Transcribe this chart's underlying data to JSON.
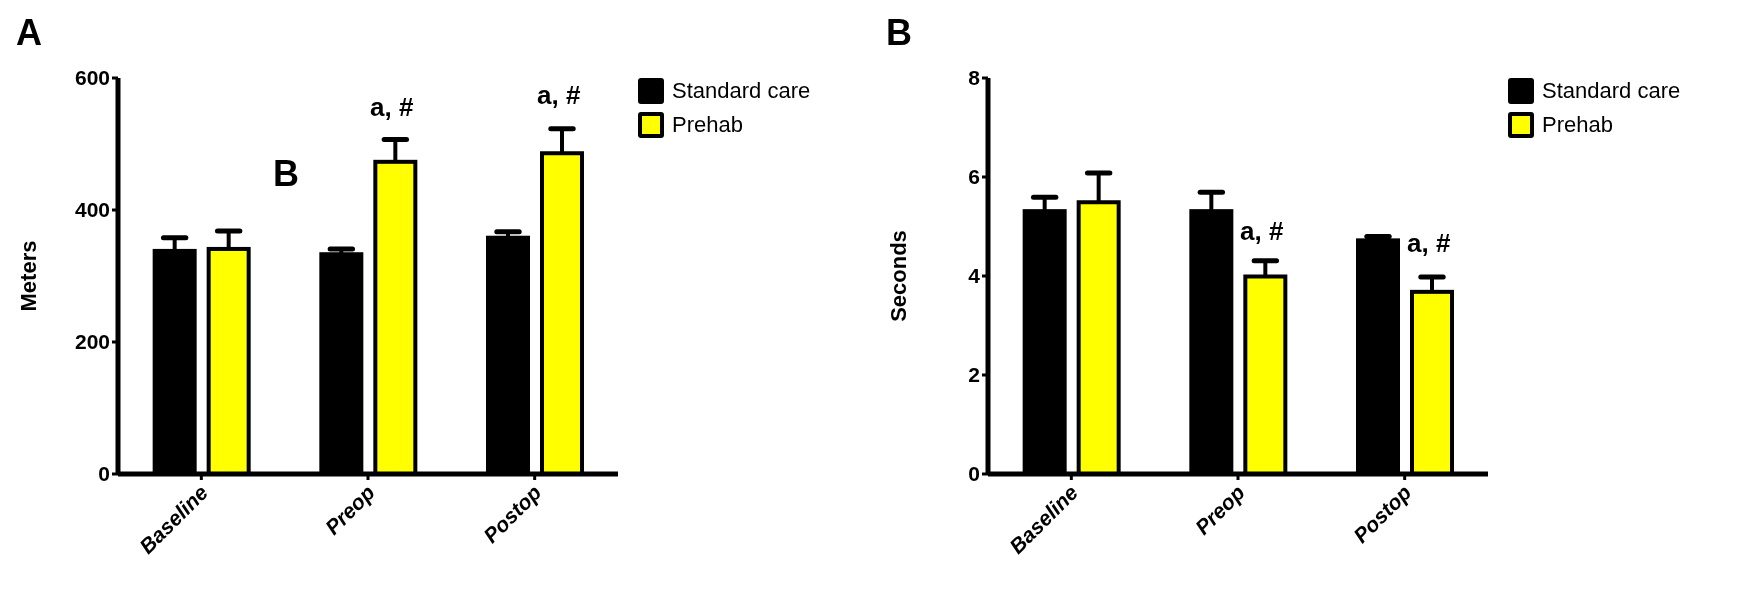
{
  "chart_data": [
    {
      "type": "bar",
      "title": "A",
      "ylabel": "Meters",
      "categories": [
        "Baseline",
        "Preop",
        "Postop"
      ],
      "series": [
        {
          "name": "Standard care",
          "color": "#000000",
          "values": [
            338,
            333,
            358
          ],
          "errors": [
            20,
            8,
            9
          ]
        },
        {
          "name": "Prehab",
          "color": "#ffff00",
          "values": [
            341,
            473,
            486
          ],
          "errors": [
            27,
            34,
            37
          ]
        }
      ],
      "ylim": [
        0,
        600
      ],
      "yticks": [
        0,
        200,
        400,
        600
      ],
      "legend": "top right",
      "annotations": [
        "B",
        "a, #",
        "a, #"
      ]
    },
    {
      "type": "bar",
      "title": "B",
      "ylabel": "Seconds",
      "categories": [
        "Baseline",
        "Preop",
        "Postop"
      ],
      "series": [
        {
          "name": "Standard care",
          "color": "#000000",
          "values": [
            5.31,
            5.31,
            4.72
          ],
          "errors": [
            0.28,
            0.38,
            0.08
          ]
        },
        {
          "name": "Prehab",
          "color": "#ffff00",
          "values": [
            5.49,
            3.99,
            3.68
          ],
          "errors": [
            0.59,
            0.32,
            0.3
          ]
        }
      ],
      "ylim": [
        0,
        8
      ],
      "yticks": [
        0,
        2,
        4,
        6,
        8
      ],
      "legend": "top right",
      "annotations": [
        "a, #",
        "a, #"
      ]
    }
  ]
}
